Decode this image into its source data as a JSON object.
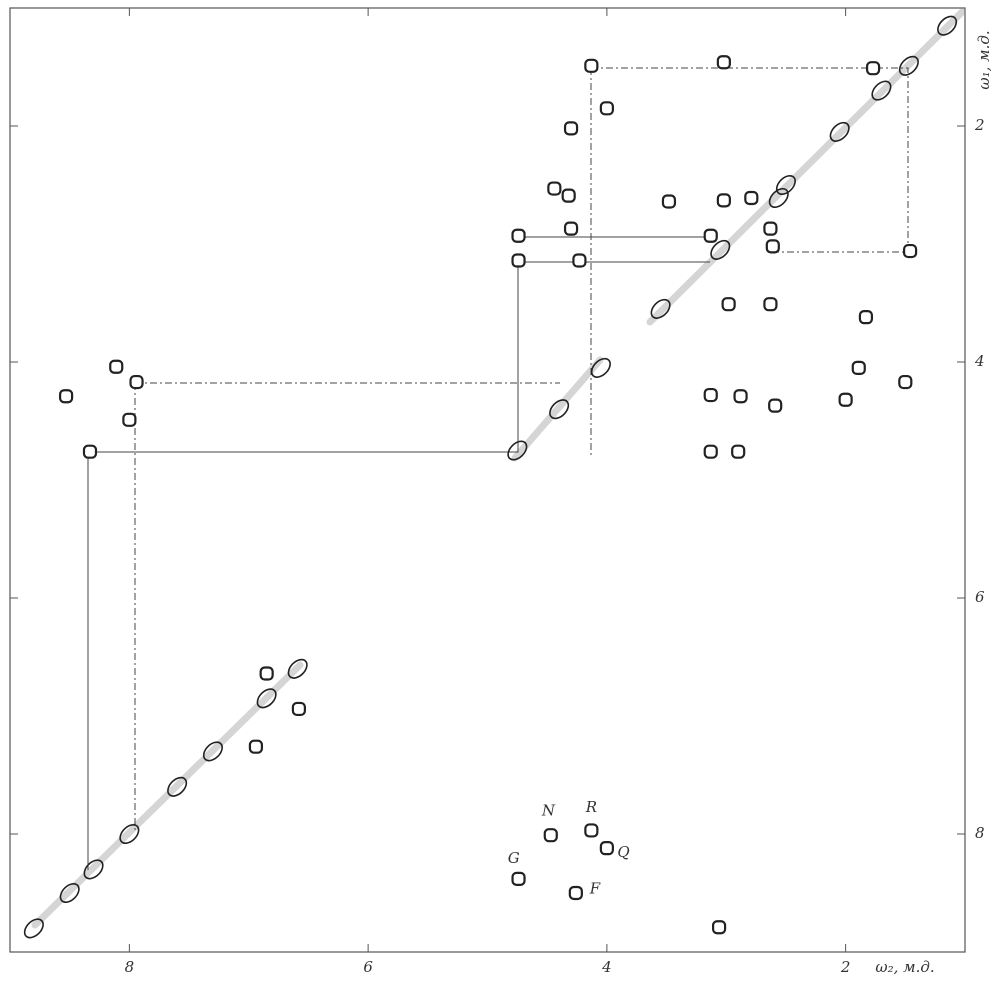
{
  "chart_data": {
    "type": "scatter",
    "x_label": "ω₂, м.д.",
    "y_label": "ω₁, м.д.",
    "xlim": [
      9,
      1
    ],
    "ylim": [
      1,
      9
    ],
    "xticks": [
      8,
      6,
      4,
      2
    ],
    "yticks": [
      2,
      4,
      6,
      8
    ],
    "color": "#222",
    "x": [
      4.13,
      3.02,
      1.77,
      1.47,
      4.3,
      4.0,
      4.44,
      4.32,
      3.48,
      3.02,
      2.79,
      2.56,
      4.74,
      4.3,
      3.13,
      2.63,
      2.61,
      1.46,
      4.74,
      4.23,
      2.98,
      2.63,
      1.83,
      8.11,
      7.94,
      8.53,
      8.0,
      8.33,
      3.13,
      2.88,
      2.59,
      2.0,
      1.89,
      1.5,
      3.13,
      2.9,
      6.85,
      6.59,
      6.58,
      6.94,
      4.47,
      4.13,
      4.0,
      4.74,
      4.26,
      3.06,
      8.8,
      8.5,
      8.3,
      8.0,
      7.6,
      7.3,
      6.85,
      4.75,
      4.4,
      4.05,
      3.55,
      3.05,
      2.5,
      2.05,
      1.7,
      1.15
    ],
    "values": [
      1.49,
      1.46,
      1.51,
      1.49,
      2.02,
      1.85,
      2.53,
      2.59,
      2.64,
      2.63,
      2.61,
      2.61,
      2.93,
      2.87,
      2.93,
      2.87,
      3.02,
      3.06,
      3.14,
      3.14,
      3.51,
      3.51,
      3.62,
      4.04,
      4.17,
      4.29,
      4.49,
      4.76,
      4.28,
      4.29,
      4.37,
      4.32,
      4.05,
      4.17,
      4.76,
      4.76,
      6.64,
      6.6,
      6.94,
      7.26,
      8.01,
      7.97,
      8.12,
      8.38,
      8.5,
      8.79,
      8.8,
      8.5,
      8.3,
      8.0,
      7.6,
      7.3,
      6.85,
      4.75,
      4.4,
      4.05,
      3.55,
      3.05,
      2.5,
      2.05,
      1.7,
      1.15
    ],
    "annotations": [
      {
        "text": "N",
        "x": 4.49,
        "y": 7.81
      },
      {
        "text": "R",
        "x": 4.13,
        "y": 7.78
      },
      {
        "text": "Q",
        "x": 3.86,
        "y": 8.16
      },
      {
        "text": "G",
        "x": 4.78,
        "y": 8.21
      },
      {
        "text": "F",
        "x": 4.1,
        "y": 8.47
      }
    ]
  }
}
